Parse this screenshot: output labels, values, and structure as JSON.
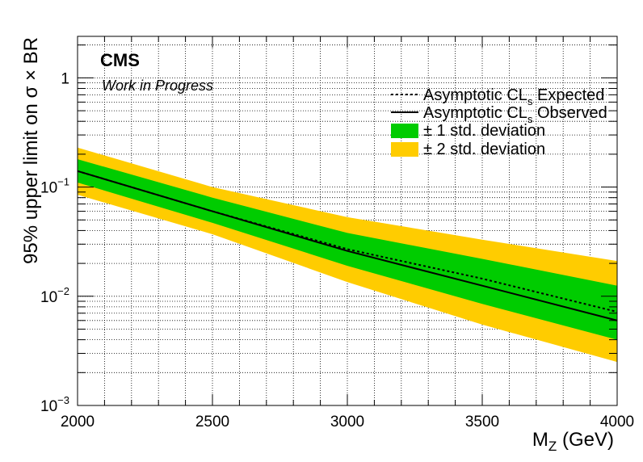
{
  "chart_data": {
    "type": "line",
    "xlabel_main": "M",
    "xlabel_sub": "Z",
    "xlabel_unit": " (GeV)",
    "ylabel": "95% upper limit on  σ × BR",
    "xlim": [
      2000,
      4000
    ],
    "ylim": [
      0.001,
      2.4
    ],
    "yscale": "log",
    "grid": true,
    "x_ticks": [
      2000,
      2500,
      3000,
      3500,
      4000
    ],
    "y_tick_labels": [
      {
        "value": 1,
        "base": "1",
        "exp": ""
      },
      {
        "value": 0.1,
        "base": "10",
        "exp": "−1"
      },
      {
        "value": 0.01,
        "base": "10",
        "exp": "−2"
      },
      {
        "value": 0.001,
        "base": "10",
        "exp": "−3"
      }
    ],
    "labels": {
      "experiment": "CMS",
      "status": "Work in Progress"
    },
    "colors": {
      "band_1sigma": "#00cc00",
      "band_2sigma": "#ffcc00",
      "line": "#000000"
    },
    "x": [
      2000,
      2500,
      3000,
      3500,
      4000
    ],
    "series": [
      {
        "name_main": "Asymptotic CL",
        "name_sub": "s",
        "name_tail": " Expected",
        "style": "dotted",
        "values": [
          0.14,
          0.06,
          0.027,
          0.0145,
          0.0072
        ]
      },
      {
        "name_main": "Asymptotic CL",
        "name_sub": "s",
        "name_tail": " Observed",
        "style": "solid",
        "values": [
          0.14,
          0.06,
          0.026,
          0.0125,
          0.006
        ]
      }
    ],
    "bands": [
      {
        "name": "± 2 std. deviation",
        "color": "#ffcc00",
        "upper": [
          0.23,
          0.1,
          0.053,
          0.033,
          0.021
        ],
        "lower": [
          0.085,
          0.037,
          0.0135,
          0.0055,
          0.0025
        ]
      },
      {
        "name": "± 1 std. deviation",
        "color": "#00cc00",
        "upper": [
          0.18,
          0.08,
          0.038,
          0.022,
          0.0125
        ],
        "lower": [
          0.11,
          0.047,
          0.019,
          0.0085,
          0.004
        ]
      }
    ],
    "legend_order": [
      {
        "kind": "line",
        "series": 0
      },
      {
        "kind": "line",
        "series": 1
      },
      {
        "kind": "band",
        "band": 1
      },
      {
        "kind": "band",
        "band": 0
      }
    ],
    "legend_position": "top-right"
  }
}
